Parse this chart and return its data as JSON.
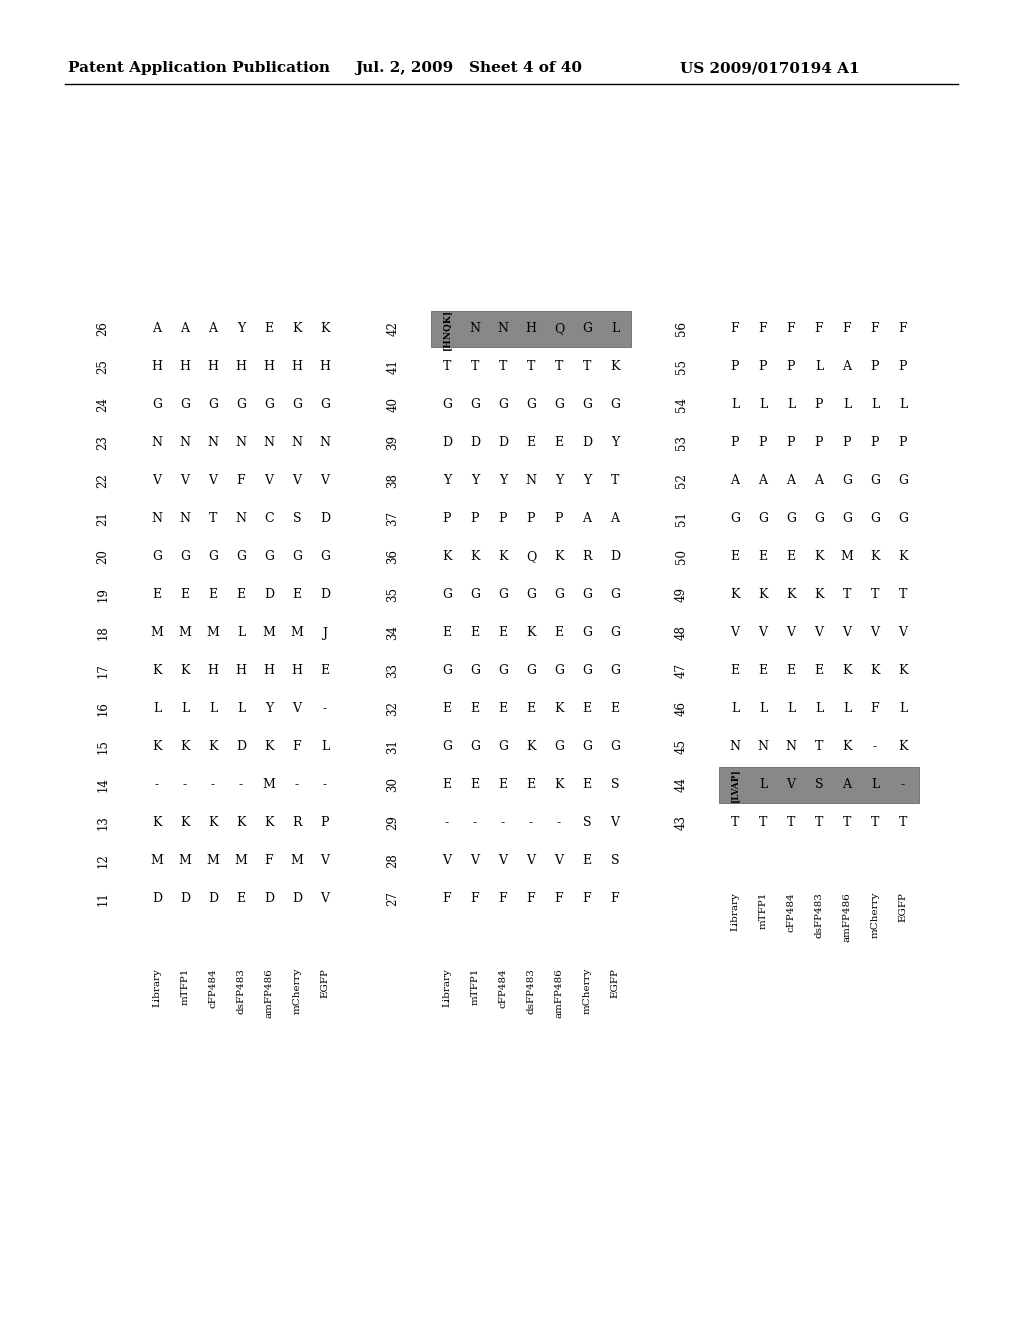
{
  "header_left": "Patent Application Publication",
  "header_mid": "Jul. 2, 2009   Sheet 4 of 40",
  "header_right": "US 2009/0170194 A1",
  "bg": "#ffffff",
  "fg": "#000000",
  "cols": [
    "Library",
    "mTFP1",
    "cFP484",
    "dsFP483",
    "amFP486",
    "mCherry",
    "EGFP"
  ],
  "block1": {
    "positions": [
      26,
      25,
      24,
      23,
      22,
      21,
      20,
      19,
      18,
      17,
      16,
      15,
      14,
      13,
      12,
      11
    ],
    "Library": [
      "A",
      "H",
      "G",
      "N",
      "V",
      "N",
      "G",
      "E",
      "M",
      "K",
      "L",
      "K",
      "-",
      "K",
      "M",
      "D"
    ],
    "mTFP1": [
      "A",
      "H",
      "G",
      "N",
      "V",
      "N",
      "G",
      "E",
      "M",
      "K",
      "L",
      "K",
      "-",
      "K",
      "M",
      "D"
    ],
    "cFP484": [
      "A",
      "H",
      "G",
      "N",
      "V",
      "T",
      "G",
      "E",
      "M",
      "H",
      "L",
      "K",
      "-",
      "K",
      "M",
      "D"
    ],
    "dsFP483": [
      "Y",
      "H",
      "G",
      "N",
      "F",
      "N",
      "G",
      "E",
      "L",
      "H",
      "L",
      "D",
      "-",
      "K",
      "M",
      "E"
    ],
    "amFP486": [
      "E",
      "H",
      "G",
      "N",
      "V",
      "C",
      "G",
      "D",
      "M",
      "H",
      "Y",
      "K",
      "M",
      "K",
      "F",
      "D"
    ],
    "mCherry": [
      "K",
      "H",
      "G",
      "N",
      "V",
      "S",
      "G",
      "E",
      "M",
      "H",
      "V",
      "F",
      "-",
      "R",
      "M",
      "D"
    ],
    "EGFP": [
      "K",
      "H",
      "G",
      "N",
      "V",
      "D",
      "G",
      "D",
      "J",
      "E",
      "-",
      "L",
      "-",
      "P",
      "V",
      "V"
    ]
  },
  "block2": {
    "positions": [
      42,
      41,
      40,
      39,
      38,
      37,
      36,
      35,
      34,
      33,
      32,
      31,
      30,
      29,
      28,
      27
    ],
    "Library": [
      "[HNQK]",
      "T",
      "G",
      "D",
      "Y",
      "P",
      "K",
      "G",
      "E",
      "G",
      "E",
      "G",
      "E",
      "-",
      "V",
      "F"
    ],
    "mTFP1": [
      "N",
      "T",
      "G",
      "D",
      "Y",
      "P",
      "K",
      "G",
      "E",
      "G",
      "E",
      "G",
      "E",
      "-",
      "V",
      "F"
    ],
    "cFP484": [
      "N",
      "T",
      "G",
      "D",
      "Y",
      "P",
      "K",
      "G",
      "E",
      "G",
      "E",
      "G",
      "E",
      "-",
      "V",
      "F"
    ],
    "dsFP483": [
      "H",
      "T",
      "G",
      "E",
      "N",
      "P",
      "Q",
      "G",
      "K",
      "G",
      "E",
      "K",
      "E",
      "-",
      "V",
      "F"
    ],
    "amFP486": [
      "Q",
      "T",
      "G",
      "E",
      "Y",
      "P",
      "K",
      "G",
      "E",
      "G",
      "K",
      "G",
      "K",
      "-",
      "V",
      "F"
    ],
    "mCherry": [
      "G",
      "T",
      "G",
      "D",
      "Y",
      "A",
      "R",
      "G",
      "G",
      "G",
      "E",
      "G",
      "E",
      "S",
      "E",
      "F"
    ],
    "EGFP": [
      "L",
      "K",
      "G",
      "Y",
      "T",
      "A",
      "D",
      "G",
      "G",
      "G",
      "E",
      "G",
      "S",
      "V",
      "S",
      "F"
    ]
  },
  "block3": {
    "positions": [
      56,
      55,
      54,
      53,
      52,
      51,
      50,
      49,
      48,
      47,
      46,
      45,
      44,
      43
    ],
    "Library": [
      "F",
      "P",
      "L",
      "P",
      "A",
      "G",
      "E",
      "K",
      "V",
      "E",
      "L",
      "N",
      "[LVAP]",
      "T"
    ],
    "mTFP1": [
      "F",
      "P",
      "L",
      "P",
      "A",
      "G",
      "E",
      "K",
      "V",
      "E",
      "L",
      "N",
      "L",
      "T"
    ],
    "cFP484": [
      "F",
      "P",
      "L",
      "P",
      "A",
      "G",
      "E",
      "K",
      "V",
      "E",
      "L",
      "N",
      "V",
      "T"
    ],
    "dsFP483": [
      "F",
      "L",
      "P",
      "P",
      "A",
      "G",
      "K",
      "K",
      "V",
      "E",
      "L",
      "T",
      "S",
      "T"
    ],
    "amFP486": [
      "F",
      "A",
      "L",
      "P",
      "G",
      "G",
      "M",
      "T",
      "V",
      "K",
      "L",
      "K",
      "A",
      "T"
    ],
    "mCherry": [
      "F",
      "P",
      "L",
      "P",
      "G",
      "G",
      "K",
      "T",
      "V",
      "K",
      "F",
      "-",
      "L",
      "T"
    ],
    "EGFP": [
      "F",
      "P",
      "L",
      "P",
      "G",
      "G",
      "K",
      "T",
      "V",
      "K",
      "L",
      "K",
      "-",
      "T"
    ]
  },
  "highlight_hnqk_row": 0,
  "highlight_lvap_row": 12
}
